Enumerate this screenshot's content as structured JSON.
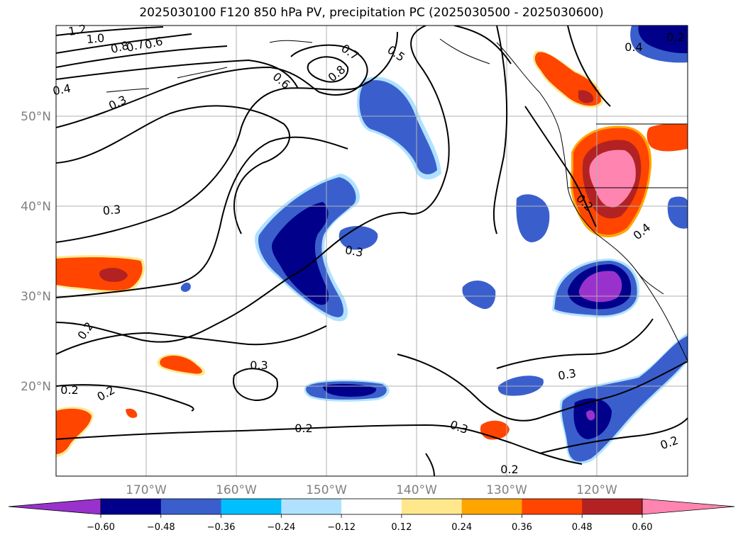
{
  "chart_data": {
    "type": "heatmap",
    "title": "2025030100 F120 850 hPa PV, precipitation PC (2025030500 - 2025030600)",
    "latitude_labels": [
      "50°N",
      "40°N",
      "30°N",
      "20°N"
    ],
    "longitude_labels": [
      "170°W",
      "160°W",
      "150°W",
      "140°W",
      "130°W",
      "120°W"
    ],
    "lat_range": [
      10,
      60
    ],
    "lon_range": [
      -180,
      -110
    ],
    "grid": true,
    "colorbar": {
      "orientation": "horizontal",
      "position": "bottom",
      "extend": "both",
      "colors": [
        "#9932CC",
        "#00008B",
        "#3A5FCD",
        "#00BFFF",
        "#B0E2FF",
        "#FFFFFF",
        "#FFE88C",
        "#FFA500",
        "#FF4500",
        "#B22222",
        "#FF85B0"
      ],
      "tick_labels": [
        "−0.60",
        "−0.48",
        "−0.36",
        "−0.24",
        "−0.12",
        "0.12",
        "0.24",
        "0.36",
        "0.48",
        "0.60"
      ]
    },
    "contour_labels": [
      "1.2",
      "1.0",
      "0.8",
      "0.7",
      "0.6",
      "0.4",
      "0.3",
      "0.7",
      "0.8",
      "0.6",
      "0.5",
      "0.4",
      "0.3",
      "0.2",
      "0.3",
      "0.3",
      "0.2",
      "0.2",
      "0.3",
      "0.2",
      "0.2",
      "0.2",
      "0.3",
      "0.4",
      "0.2",
      "0.2"
    ]
  }
}
